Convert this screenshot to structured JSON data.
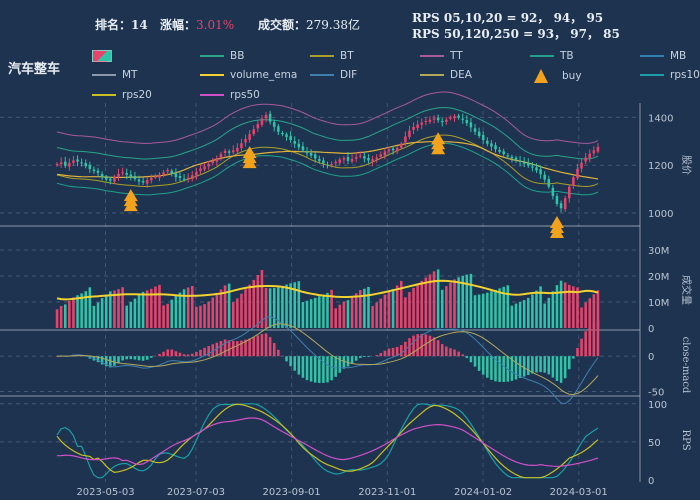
{
  "header": {
    "rank_label": "排名：",
    "rank_value": "14",
    "change_label": "涨幅：",
    "change_value": "3.01%",
    "turnover_label": "成交额：",
    "turnover_value": "279.38亿",
    "rps_short": "RPS 05,10,20 = 92， 94， 95",
    "rps_long": "RPS 50,120,250 = 93， 97， 85",
    "sector": "汽车整车"
  },
  "legend": [
    {
      "label": "",
      "color": "#e8436b",
      "kind": "candle"
    },
    {
      "label": "BB",
      "color": "#2aa58a"
    },
    {
      "label": "BT",
      "color": "#a8a028"
    },
    {
      "label": "TT",
      "color": "#a85a9c"
    },
    {
      "label": "TB",
      "color": "#1fa38c"
    },
    {
      "label": "MB",
      "color": "#2f7fb0"
    },
    {
      "label": "MT",
      "color": "#8a9aaa"
    },
    {
      "label": "volume_ema",
      "color": "#f2d230"
    },
    {
      "label": "DIF",
      "color": "#3f7fae"
    },
    {
      "label": "DEA",
      "color": "#b3a85a"
    },
    {
      "label": "buy",
      "color": "#f3a21c",
      "kind": "triangle"
    },
    {
      "label": "rps10",
      "color": "#1a9fa8"
    },
    {
      "label": "rps20",
      "color": "#c8c020"
    },
    {
      "label": "rps50",
      "color": "#d050c8"
    }
  ],
  "colors": {
    "up": "#e8436b",
    "down": "#2ec4a8",
    "background": "#1e3350",
    "buy": "#f3a21c"
  },
  "chart_data": [
    {
      "type": "candlestick",
      "ylabel": "股价",
      "ylim": [
        950,
        1460
      ],
      "yticks": [
        1000,
        1200,
        1400
      ],
      "close": [
        1205,
        1212,
        1198,
        1210,
        1220,
        1215,
        1208,
        1196,
        1184,
        1175,
        1168,
        1150,
        1140,
        1135,
        1152,
        1164,
        1170,
        1160,
        1150,
        1142,
        1132,
        1128,
        1138,
        1148,
        1152,
        1160,
        1170,
        1180,
        1165,
        1150,
        1146,
        1140,
        1148,
        1158,
        1172,
        1186,
        1195,
        1205,
        1218,
        1230,
        1246,
        1260,
        1252,
        1262,
        1272,
        1292,
        1310,
        1330,
        1350,
        1372,
        1395,
        1410,
        1382,
        1360,
        1340,
        1330,
        1318,
        1305,
        1290,
        1275,
        1262,
        1250,
        1240,
        1228,
        1218,
        1208,
        1200,
        1205,
        1214,
        1224,
        1230,
        1218,
        1226,
        1234,
        1240,
        1228,
        1220,
        1225,
        1232,
        1245,
        1258,
        1266,
        1262,
        1272,
        1290,
        1320,
        1345,
        1360,
        1370,
        1378,
        1385,
        1390,
        1395,
        1388,
        1380,
        1390,
        1398,
        1405,
        1400,
        1390,
        1376,
        1358,
        1340,
        1322,
        1305,
        1290,
        1278,
        1266,
        1256,
        1246,
        1236,
        1228,
        1222,
        1214,
        1206,
        1198,
        1190,
        1178,
        1162,
        1140,
        1110,
        1072,
        1038,
        1020,
        1062,
        1110,
        1150,
        1185,
        1210,
        1232,
        1248,
        1262,
        1276
      ],
      "highs": [
        1232,
        1245,
        1420,
        1458,
        1390,
        1448,
        1302,
        1050
      ],
      "lows": [
        1123,
        1110,
        1175,
        1198,
        1128,
        1015
      ],
      "buy_signal_index": [
        18,
        47,
        93,
        122
      ]
    },
    {
      "type": "bar",
      "ylabel": "成交量",
      "ylim": [
        0,
        30000000
      ],
      "yticks": [
        "0",
        "10M",
        "20M",
        "30M"
      ],
      "volume_peak": 29000000,
      "volume_ema_range": [
        7000000,
        19000000
      ]
    },
    {
      "type": "bar",
      "ylabel": "close-macd",
      "ylim": [
        -55,
        30
      ],
      "yticks": [
        "-50",
        "0"
      ],
      "series": [
        {
          "name": "DIF"
        },
        {
          "name": "DEA"
        }
      ]
    },
    {
      "type": "line",
      "ylabel": "RPS",
      "ylim": [
        0,
        105
      ],
      "yticks": [
        "0",
        "50",
        "100"
      ],
      "series": [
        {
          "name": "rps10"
        },
        {
          "name": "rps20"
        },
        {
          "name": "rps50"
        }
      ]
    }
  ],
  "xticks": [
    "2023-05-03",
    "2023-07-03",
    "2023-09-01",
    "2023-11-01",
    "2024-01-02",
    "2024-03-01"
  ],
  "xtick_index": [
    19,
    53,
    89,
    125,
    161,
    197
  ]
}
